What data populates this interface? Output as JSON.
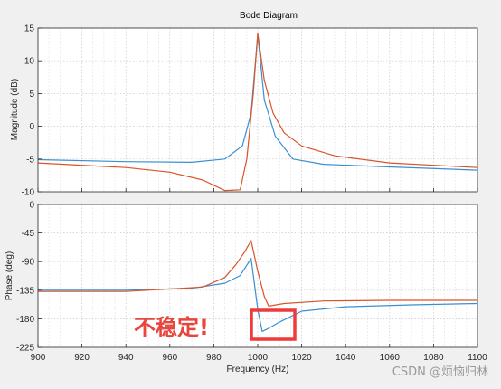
{
  "chart_data": [
    {
      "type": "line",
      "title": "Bode Diagram",
      "ylabel": "Magnitude (dB)",
      "xlabel": "",
      "xlim": [
        900,
        1100
      ],
      "ylim": [
        -10,
        15
      ],
      "xticks": [
        900,
        920,
        940,
        960,
        980,
        1000,
        1020,
        1040,
        1060,
        1080,
        1100
      ],
      "yticks": [
        -10,
        -5,
        0,
        5,
        10,
        15
      ],
      "grid": true,
      "series": [
        {
          "color": "#3a8fd0",
          "x": [
            900,
            940,
            970,
            985,
            993,
            997,
            1000,
            1003,
            1008,
            1016,
            1030,
            1060,
            1100
          ],
          "y": [
            -5.1,
            -5.4,
            -5.5,
            -5.0,
            -3.0,
            2.0,
            14.0,
            4.0,
            -1.5,
            -5.0,
            -5.8,
            -6.2,
            -6.7
          ]
        },
        {
          "color": "#d9542a",
          "x": [
            900,
            940,
            960,
            975,
            985,
            992,
            995,
            998,
            1000,
            1003,
            1007,
            1012,
            1020,
            1035,
            1060,
            1100
          ],
          "y": [
            -5.6,
            -6.3,
            -7.0,
            -8.2,
            -9.8,
            -9.7,
            -5.0,
            5.0,
            14.2,
            7.0,
            2.0,
            -1.0,
            -3.0,
            -4.5,
            -5.6,
            -6.3
          ]
        }
      ]
    },
    {
      "type": "line",
      "ylabel": "Phase (deg)",
      "xlabel": "Frequency (Hz)",
      "xlim": [
        900,
        1100
      ],
      "ylim": [
        -225,
        0
      ],
      "xticks": [
        900,
        920,
        940,
        960,
        980,
        1000,
        1020,
        1040,
        1060,
        1080,
        1100
      ],
      "yticks": [
        0,
        -45,
        -90,
        -135,
        -180,
        -225
      ],
      "grid": true,
      "series": [
        {
          "color": "#3a8fd0",
          "x": [
            900,
            940,
            970,
            985,
            992,
            997,
            1000,
            1002,
            1005,
            1010,
            1020,
            1040,
            1070,
            1100
          ],
          "y": [
            -135,
            -135,
            -132,
            -124,
            -112,
            -85,
            -165,
            -200,
            -195,
            -185,
            -168,
            -161,
            -158,
            -156
          ]
        },
        {
          "color": "#d9542a",
          "x": [
            900,
            940,
            975,
            985,
            990,
            994,
            997,
            1000,
            1003,
            1005,
            1012,
            1030,
            1060,
            1100
          ],
          "y": [
            -137,
            -137,
            -130,
            -115,
            -95,
            -75,
            -57,
            -105,
            -145,
            -160,
            -156,
            -152,
            -151,
            -151
          ]
        }
      ]
    }
  ],
  "annotation": {
    "text": "不稳定!",
    "box_color": "#ee3a3a"
  },
  "watermark": "CSDN @烦恼归林"
}
